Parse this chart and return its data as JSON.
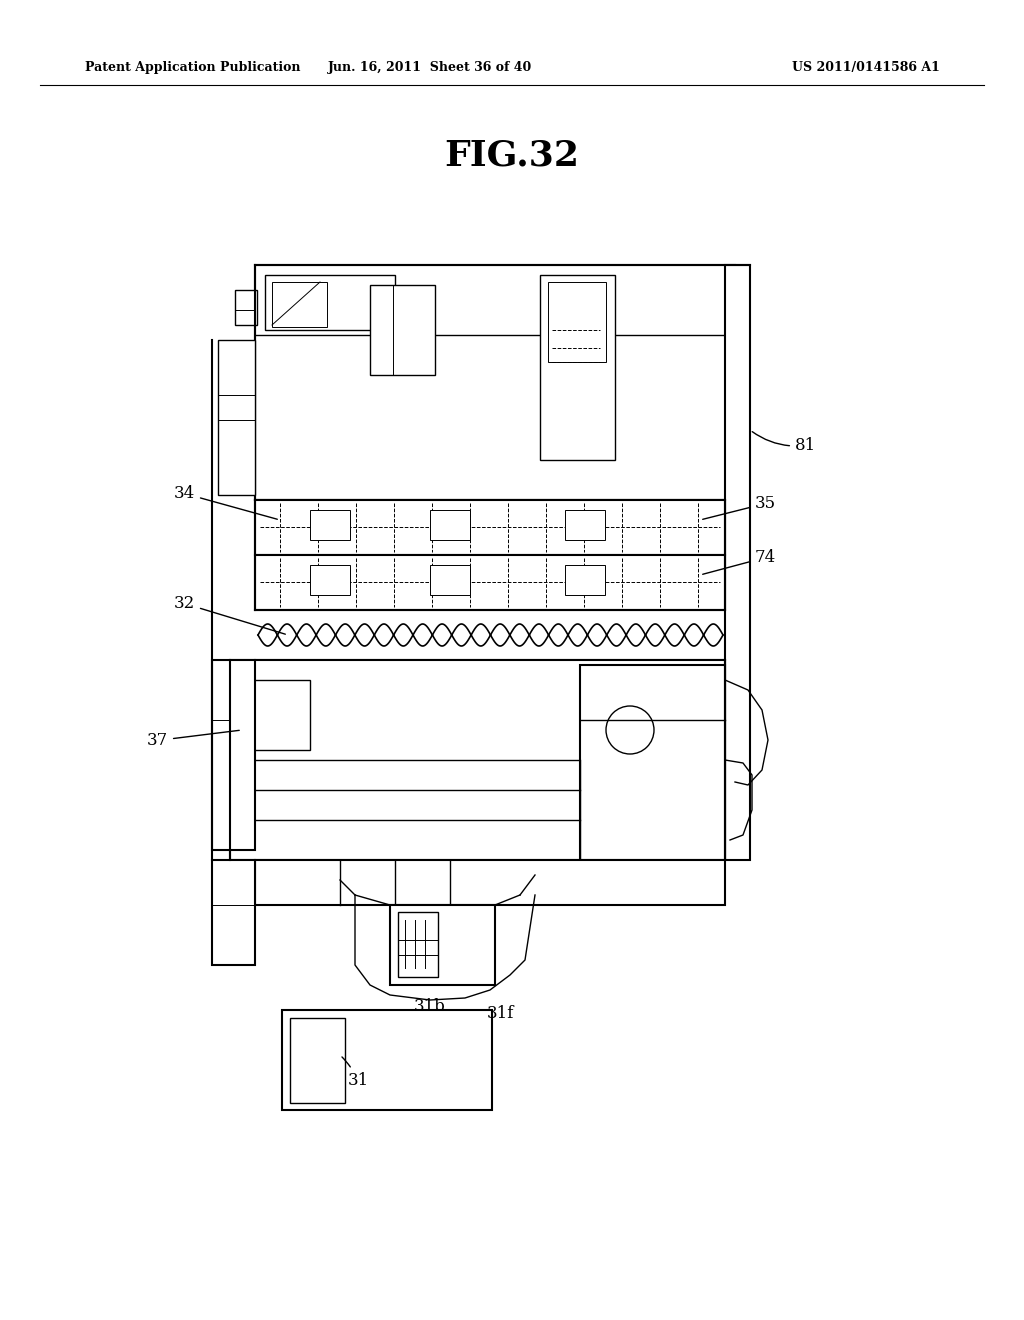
{
  "title": "FIG.32",
  "header_left": "Patent Application Publication",
  "header_center": "Jun. 16, 2011  Sheet 36 of 40",
  "header_right": "US 2011/0141586 A1",
  "bg_color": "#ffffff"
}
